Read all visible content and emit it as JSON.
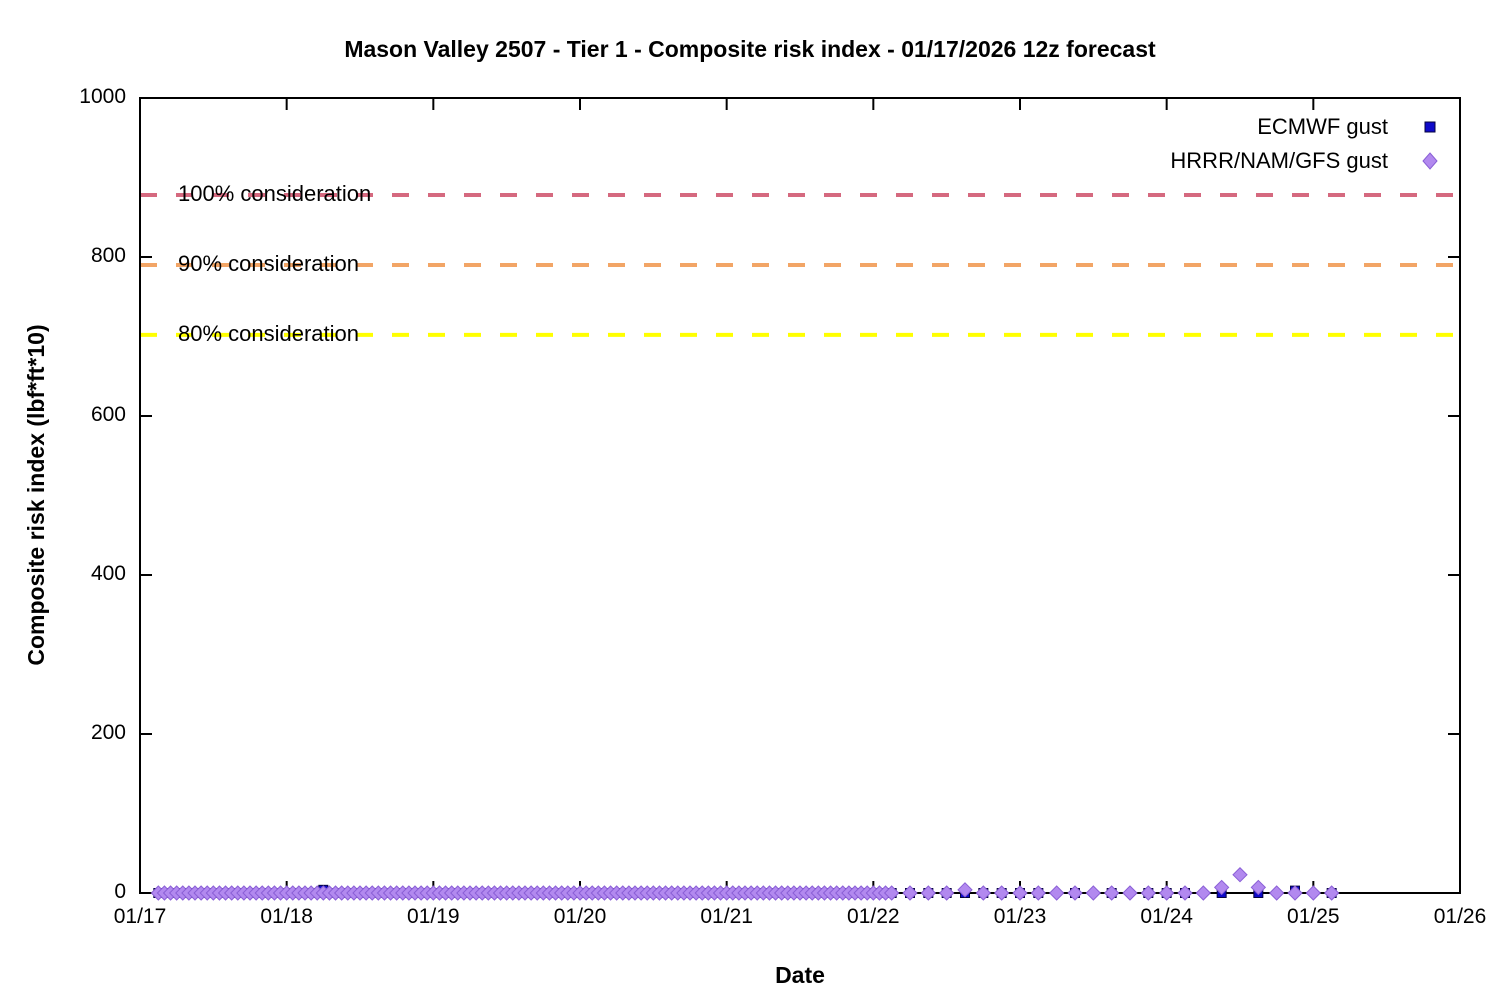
{
  "title": "Mason Valley 2507 - Tier 1 - Composite risk index - 01/17/2026 12z forecast",
  "chart_data": {
    "type": "scatter",
    "title": "Mason Valley 2507 - Tier 1 - Composite risk index - 01/17/2026 12z forecast",
    "xlabel": "Date",
    "ylabel": "Composite risk index (lbf*ft*10)",
    "grid": false,
    "legend_position": "top-right-inside",
    "x_axis": {
      "tick_labels": [
        "01/17",
        "01/18",
        "01/19",
        "01/20",
        "01/21",
        "01/22",
        "01/23",
        "01/24",
        "01/25",
        "01/26"
      ],
      "start_hour": 0,
      "span_hours": 216
    },
    "y_axis": {
      "tick_labels": [
        "0",
        "200",
        "400",
        "600",
        "800",
        "1000"
      ],
      "min": 0,
      "max": 1000
    },
    "thresholds": [
      {
        "label": "100% consideration",
        "value": 878,
        "color": "#d5697f"
      },
      {
        "label": "90% consideration",
        "value": 790,
        "color": "#f2a566"
      },
      {
        "label": "80% consideration",
        "value": 702,
        "color": "#ffff00"
      }
    ],
    "series": [
      {
        "name": "ECMWF gust",
        "marker": "square",
        "color": "#0f0ac9",
        "edge_color": "#06033f",
        "hourly_runs": [
          {
            "from_hour": 3,
            "to_hour": 123,
            "step_hours": 1,
            "value": 0
          }
        ],
        "points": [
          [
            30,
            4
          ],
          [
            126,
            0
          ],
          [
            129,
            0
          ],
          [
            132,
            0
          ],
          [
            135,
            0
          ],
          [
            138,
            0
          ],
          [
            141,
            0
          ],
          [
            144,
            0
          ],
          [
            147,
            0
          ],
          [
            153,
            0
          ],
          [
            159,
            0
          ],
          [
            165,
            0
          ],
          [
            168,
            0
          ],
          [
            171,
            0
          ],
          [
            177,
            0
          ],
          [
            183,
            0
          ],
          [
            189,
            3
          ],
          [
            195,
            0
          ]
        ]
      },
      {
        "name": "HRRR/NAM/GFS gust",
        "marker": "diamond",
        "color": "#b289ef",
        "edge_color": "#8a5fd6",
        "hourly_runs": [
          {
            "from_hour": 3,
            "to_hour": 123,
            "step_hours": 1,
            "value": 0
          }
        ],
        "points": [
          [
            126,
            0
          ],
          [
            129,
            0
          ],
          [
            132,
            0
          ],
          [
            135,
            4
          ],
          [
            138,
            0
          ],
          [
            141,
            0
          ],
          [
            144,
            0
          ],
          [
            147,
            0
          ],
          [
            150,
            0
          ],
          [
            153,
            0
          ],
          [
            156,
            0
          ],
          [
            159,
            0
          ],
          [
            162,
            0
          ],
          [
            165,
            0
          ],
          [
            168,
            0
          ],
          [
            171,
            0
          ],
          [
            174,
            0
          ],
          [
            177,
            7
          ],
          [
            180,
            23
          ],
          [
            183,
            7
          ],
          [
            186,
            0
          ],
          [
            189,
            0
          ],
          [
            192,
            0
          ],
          [
            195,
            0
          ]
        ]
      }
    ]
  }
}
